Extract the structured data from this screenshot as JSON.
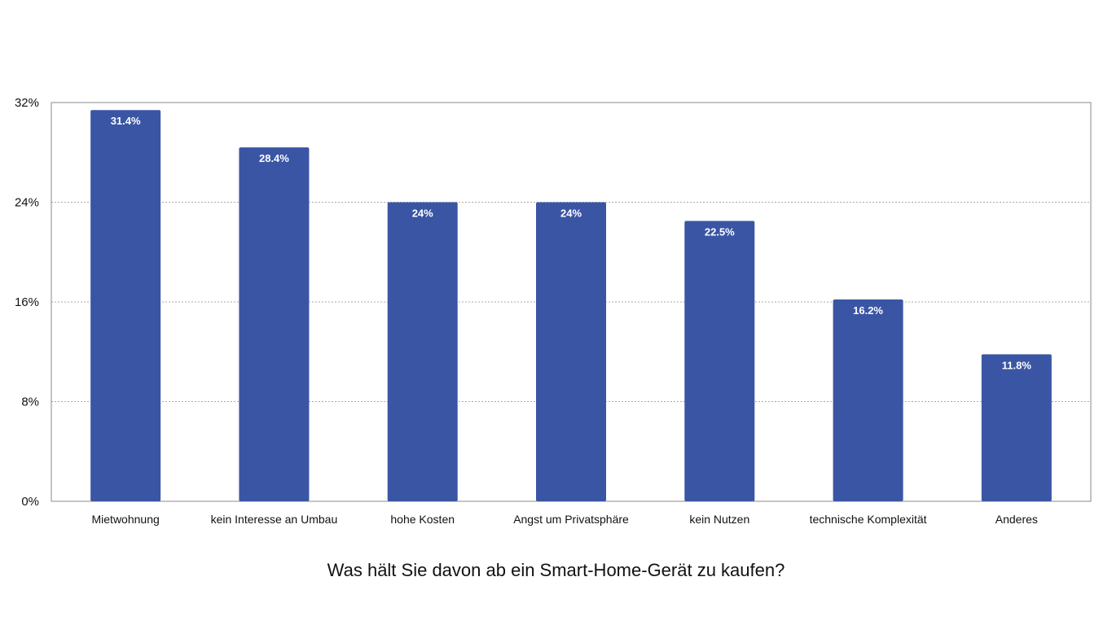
{
  "chart_data": {
    "type": "bar",
    "title": "Was hält Sie davon ab ein Smart-Home-Gerät zu kaufen?",
    "xlabel": "",
    "ylabel": "",
    "categories": [
      "Mietwohnung",
      "kein Interesse an Umbau",
      "hohe Kosten",
      "Angst um Privatsphäre",
      "kein Nutzen",
      "technische Komplexität",
      "Anderes"
    ],
    "values": [
      31.4,
      28.4,
      24,
      24,
      22.5,
      16.2,
      11.8
    ],
    "value_labels": [
      "31.4%",
      "28.4%",
      "24%",
      "24%",
      "22.5%",
      "16.2%",
      "11.8%"
    ],
    "ylim": [
      0,
      32
    ],
    "yticks": [
      0,
      8,
      16,
      24,
      32
    ],
    "ytick_labels": [
      "0%",
      "8%",
      "16%",
      "24%",
      "32%"
    ],
    "grid": true,
    "legend": "none",
    "bar_color": "#3a55a4",
    "grid_color": "#aaaaaa"
  }
}
